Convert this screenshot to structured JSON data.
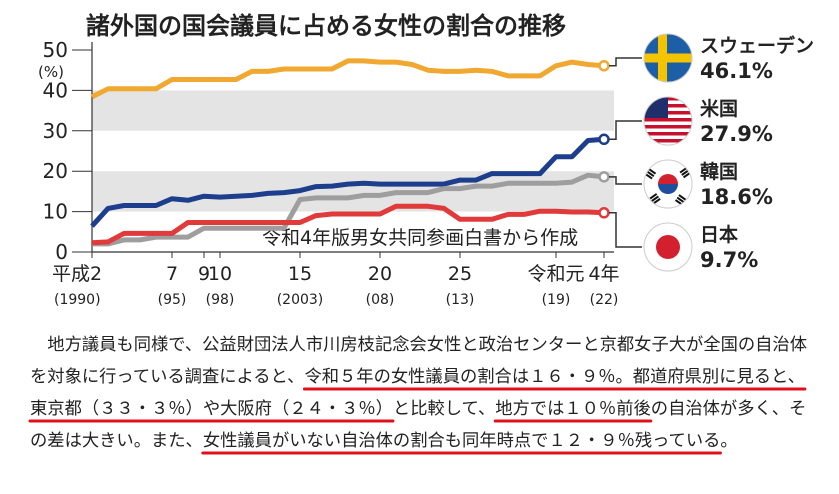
{
  "chart_data": {
    "type": "line",
    "title": "諸外国の国会議員に占める女性の割合の推移",
    "ylabel": "(%)",
    "ylim": [
      0,
      50
    ],
    "yticks": [
      0,
      10,
      20,
      30,
      40,
      50
    ],
    "source": "令和4年版男女共同参画白書から作成",
    "xlim": [
      1990,
      2022
    ],
    "xticks": [
      {
        "x": 1990,
        "label": "平成2",
        "sub": "(1990)"
      },
      {
        "x": 1995,
        "label": "7",
        "sub": "(95)"
      },
      {
        "x": 1997,
        "label": "9",
        "sub": ""
      },
      {
        "x": 1998,
        "label": "10",
        "sub": "(98)"
      },
      {
        "x": 2003,
        "label": "15",
        "sub": "(2003)"
      },
      {
        "x": 2008,
        "label": "20",
        "sub": "(08)"
      },
      {
        "x": 2013,
        "label": "25",
        "sub": "(13)"
      },
      {
        "x": 2019,
        "label": "令和元",
        "sub": "(19)"
      },
      {
        "x": 2022,
        "label": "4年",
        "sub": "(22)"
      }
    ],
    "series": [
      {
        "name": "スウェーデン",
        "value_label": "46.1%",
        "color": "#f0a830",
        "flag": "sweden-flag",
        "x": [
          1990,
          1991,
          1992,
          1993,
          1994,
          1995,
          1996,
          1997,
          1998,
          1999,
          2000,
          2001,
          2002,
          2003,
          2004,
          2005,
          2006,
          2007,
          2008,
          2009,
          2010,
          2011,
          2012,
          2013,
          2014,
          2015,
          2016,
          2017,
          2018,
          2019,
          2020,
          2021,
          2022
        ],
        "values": [
          38.4,
          40.4,
          40.4,
          40.4,
          40.4,
          42.7,
          42.7,
          42.7,
          42.7,
          42.7,
          44.7,
          44.7,
          45.3,
          45.3,
          45.3,
          45.3,
          47.3,
          47.3,
          47.0,
          47.0,
          46.4,
          45.0,
          44.7,
          44.7,
          45.0,
          44.7,
          43.6,
          43.6,
          43.6,
          46.1,
          47.0,
          46.4,
          46.1
        ]
      },
      {
        "name": "米国",
        "value_label": "27.9%",
        "color": "#1c3e8c",
        "flag": "usa-flag",
        "x": [
          1990,
          1991,
          1992,
          1993,
          1994,
          1995,
          1996,
          1997,
          1998,
          1999,
          2000,
          2001,
          2002,
          2003,
          2004,
          2005,
          2006,
          2007,
          2008,
          2009,
          2010,
          2011,
          2012,
          2013,
          2014,
          2015,
          2016,
          2017,
          2018,
          2019,
          2020,
          2021,
          2022
        ],
        "values": [
          6.4,
          10.8,
          11.5,
          11.5,
          11.5,
          13.2,
          12.8,
          13.8,
          13.6,
          13.8,
          14.0,
          14.5,
          14.7,
          15.2,
          16.2,
          16.3,
          16.8,
          17.0,
          16.8,
          16.8,
          16.8,
          16.8,
          16.8,
          17.8,
          17.8,
          19.4,
          19.4,
          19.4,
          19.4,
          23.6,
          23.6,
          27.6,
          27.9
        ]
      },
      {
        "name": "韓国",
        "value_label": "18.6%",
        "color": "#9e9e9e",
        "flag": "korea-flag",
        "x": [
          1990,
          1991,
          1992,
          1993,
          1994,
          1995,
          1996,
          1997,
          1998,
          1999,
          2000,
          2001,
          2002,
          2003,
          2004,
          2005,
          2006,
          2007,
          2008,
          2009,
          2010,
          2011,
          2012,
          2013,
          2014,
          2015,
          2016,
          2017,
          2018,
          2019,
          2020,
          2021,
          2022
        ],
        "values": [
          2.0,
          2.0,
          3.0,
          3.0,
          3.7,
          3.7,
          3.7,
          5.9,
          5.9,
          5.9,
          5.9,
          5.9,
          5.9,
          13.0,
          13.4,
          13.4,
          13.4,
          14.0,
          14.0,
          14.7,
          14.7,
          14.7,
          15.7,
          15.7,
          16.3,
          16.3,
          17.0,
          17.0,
          17.0,
          17.0,
          17.3,
          19.0,
          18.6
        ]
      },
      {
        "name": "日本",
        "value_label": "9.7%",
        "color": "#e03a3a",
        "flag": "japan-flag",
        "x": [
          1990,
          1991,
          1992,
          1993,
          1994,
          1995,
          1996,
          1997,
          1998,
          1999,
          2000,
          2001,
          2002,
          2003,
          2004,
          2005,
          2006,
          2007,
          2008,
          2009,
          2010,
          2011,
          2012,
          2013,
          2014,
          2015,
          2016,
          2017,
          2018,
          2019,
          2020,
          2021,
          2022
        ],
        "values": [
          2.3,
          2.5,
          4.6,
          4.6,
          4.6,
          4.6,
          7.3,
          7.3,
          7.3,
          7.3,
          7.3,
          7.3,
          7.3,
          7.3,
          9.0,
          9.4,
          9.4,
          9.4,
          9.4,
          11.3,
          11.3,
          11.3,
          10.8,
          8.1,
          8.1,
          8.1,
          9.3,
          9.3,
          10.1,
          10.1,
          9.9,
          9.9,
          9.7
        ]
      }
    ]
  },
  "article": {
    "segments": [
      {
        "t": "地方議員も同様で、公益財団法人市川房枝記念会女性と政治センターと京都女子大が全国の自治体を対象に行っている調査によると、",
        "u": false
      },
      {
        "t": "令和５年の女性議員の割合は１６・９％。都道府県別に見ると、東京都（３３・３％）や大阪府（２４・３％）",
        "u": true
      },
      {
        "t": "と比較して、",
        "u": false
      },
      {
        "t": "地方では１０％前後",
        "u": true
      },
      {
        "t": "の自治体が多く、その差は大きい。また、",
        "u": false
      },
      {
        "t": "女性議員がいない自治体の割合も同年時点で１２・９％残っている",
        "u": true
      },
      {
        "t": "。",
        "u": false
      }
    ]
  }
}
